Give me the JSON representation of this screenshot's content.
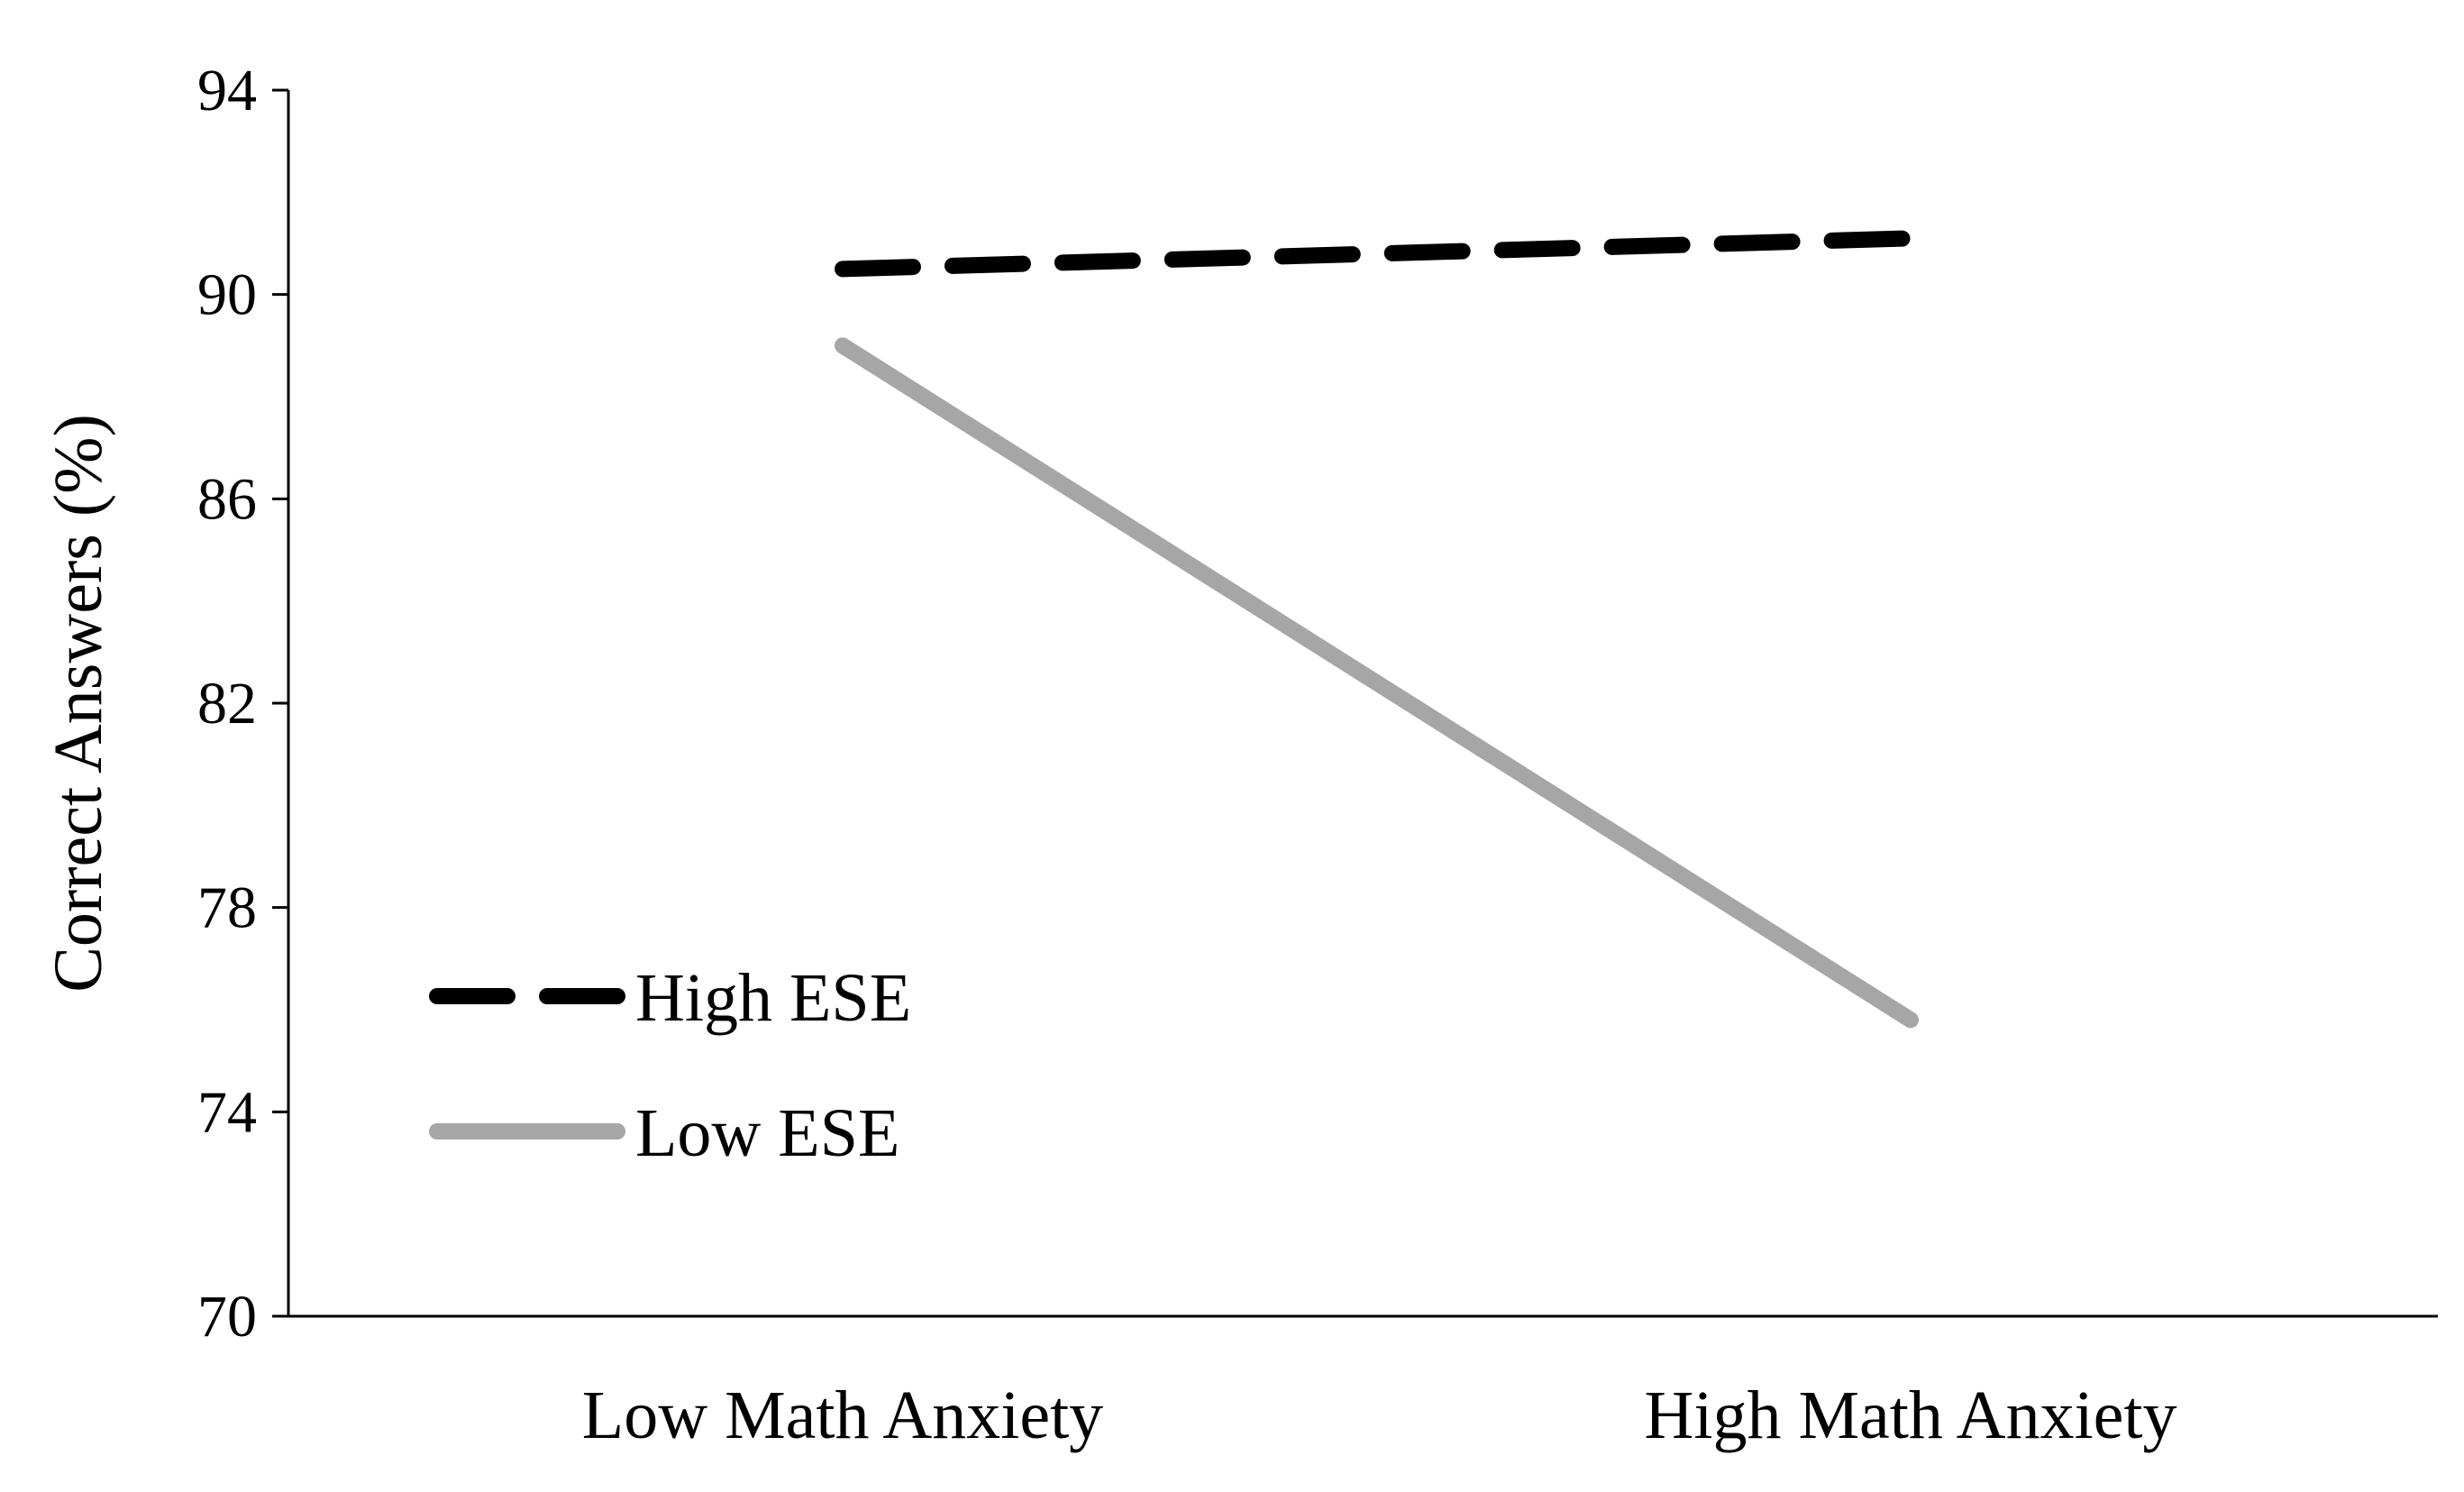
{
  "chart_data": {
    "type": "line",
    "categories": [
      "Low Math Anxiety",
      "High Math Anxiety"
    ],
    "series": [
      {
        "name": "High ESE",
        "values": [
          90.5,
          91.1
        ],
        "color": "#000000",
        "style": "dashed"
      },
      {
        "name": "Low ESE",
        "values": [
          89.0,
          75.8
        ],
        "color": "#a6a6a6",
        "style": "solid"
      }
    ],
    "title": "",
    "xlabel": "",
    "ylabel": "Correct Answers (%)",
    "ylim": [
      70,
      94
    ],
    "yticks": [
      70,
      74,
      78,
      82,
      86,
      90,
      94
    ],
    "grid": false,
    "legend_position": "bottom-left"
  }
}
